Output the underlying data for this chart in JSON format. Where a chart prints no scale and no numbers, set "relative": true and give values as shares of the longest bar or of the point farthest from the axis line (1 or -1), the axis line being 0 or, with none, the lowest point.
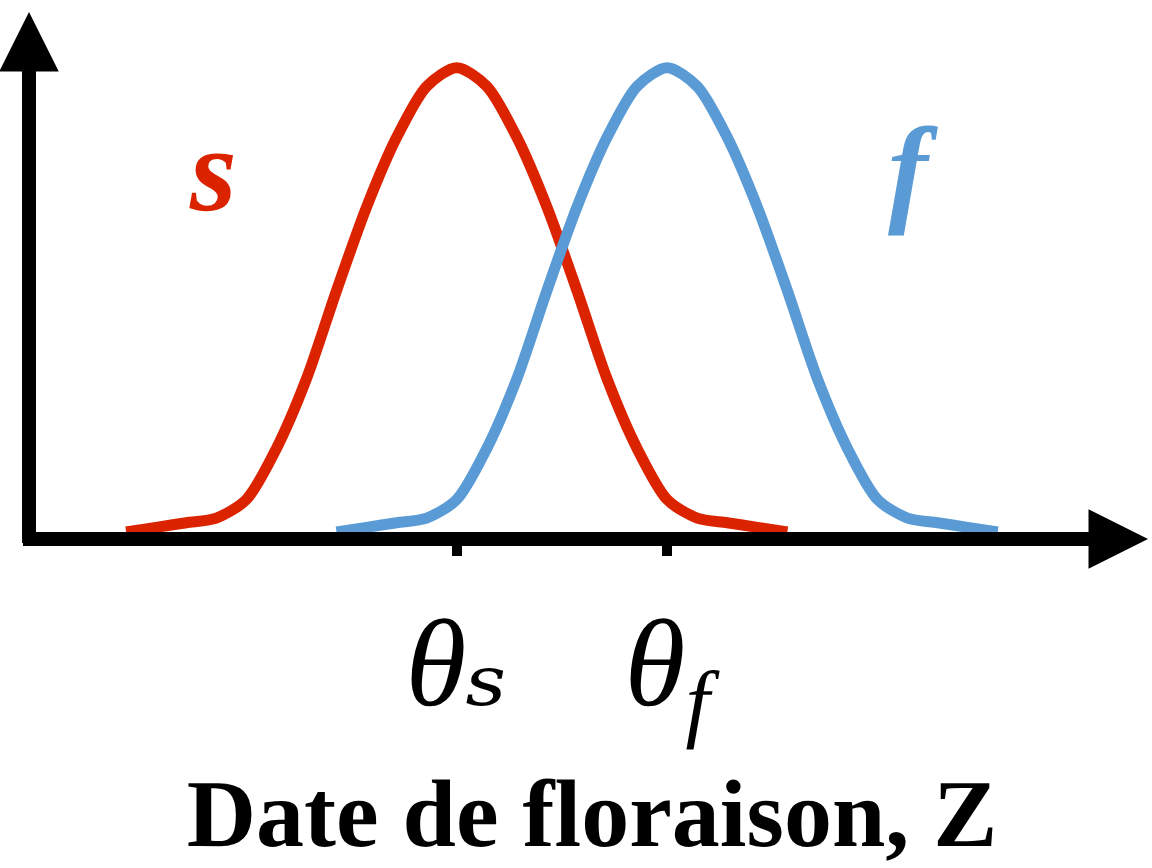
{
  "chart_data": {
    "type": "line",
    "relative": true,
    "xlabel": "Date de floraison, Z",
    "categories": [
      null,
      null,
      null,
      null,
      null,
      null,
      null,
      null,
      null,
      null,
      null,
      null,
      null,
      null,
      "θₛ",
      null,
      null,
      null,
      null,
      null,
      null,
      "θ$_{f}$",
      null,
      null,
      null,
      null,
      null,
      null,
      null,
      null,
      null,
      null,
      null,
      null,
      null,
      null,
      null,
      null
    ],
    "series": [
      {
        "name": "s",
        "color": "#dc2300",
        "values": [
          null,
          null,
          null,
          0.0,
          0.01,
          0.02,
          0.03,
          0.07,
          0.18,
          0.33,
          0.52,
          0.7,
          0.85,
          0.96,
          1.0,
          0.96,
          0.85,
          0.7,
          0.52,
          0.33,
          0.18,
          0.07,
          0.03,
          0.02,
          0.01,
          0.0,
          null,
          null,
          null,
          null,
          null,
          null,
          null,
          null,
          null,
          null,
          null,
          null
        ]
      },
      {
        "name": "f",
        "color": "#5b9bd5",
        "values": [
          null,
          null,
          null,
          null,
          null,
          null,
          null,
          null,
          null,
          null,
          0.0,
          0.01,
          0.02,
          0.03,
          0.07,
          0.18,
          0.33,
          0.52,
          0.7,
          0.85,
          0.96,
          1.0,
          0.96,
          0.85,
          0.7,
          0.52,
          0.33,
          0.18,
          0.07,
          0.03,
          0.02,
          0.01,
          0.0,
          null,
          null,
          null,
          null,
          null
        ]
      }
    ]
  }
}
